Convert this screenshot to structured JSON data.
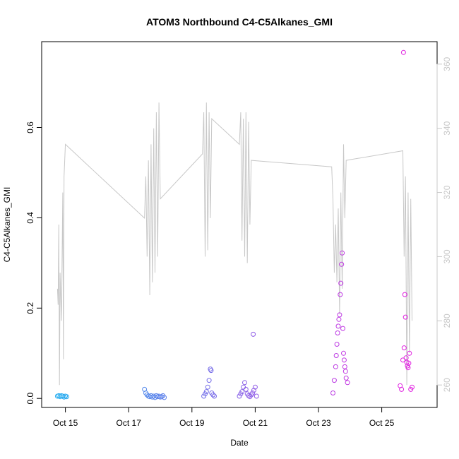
{
  "chart_data": {
    "type": "scatter",
    "title": "ATOM3 Northbound C4-C5Alkanes_GMI",
    "xlabel": "Date",
    "ylabel": "C4-C5Alkanes_GMI",
    "xlim": [
      "2016-10-14T06:00",
      "2016-10-26T18:00"
    ],
    "ylim": [
      -0.02,
      0.79
    ],
    "y2lim": [
      253,
      367
    ],
    "x_ticks": [
      {
        "value": "2016-10-15",
        "label": "Oct 15"
      },
      {
        "value": "2016-10-17",
        "label": "Oct 17"
      },
      {
        "value": "2016-10-19",
        "label": "Oct 19"
      },
      {
        "value": "2016-10-21",
        "label": "Oct 21"
      },
      {
        "value": "2016-10-23",
        "label": "Oct 23"
      },
      {
        "value": "2016-10-25",
        "label": "Oct 25"
      }
    ],
    "y_ticks": [
      {
        "value": 0.0,
        "label": "0.0"
      },
      {
        "value": 0.2,
        "label": "0.2"
      },
      {
        "value": 0.4,
        "label": "0.4"
      },
      {
        "value": 0.6,
        "label": "0.6"
      }
    ],
    "y2_ticks": [
      {
        "value": 260,
        "label": "260"
      },
      {
        "value": 280,
        "label": "280"
      },
      {
        "value": 300,
        "label": "300"
      },
      {
        "value": 320,
        "label": "320"
      },
      {
        "value": 340,
        "label": "340"
      },
      {
        "value": 360,
        "label": "360"
      }
    ],
    "colors": {
      "line": "#c8c8c8",
      "right_axis": "#c8c8c8",
      "point_start": "#1ab2f0",
      "point_end": "#e020e0"
    },
    "series": [
      {
        "type": "scatter",
        "axis": "left",
        "marker": "open-circle",
        "points": [
          [
            "2016-10-14T18:00",
            0.005
          ],
          [
            "2016-10-14T19:00",
            0.006
          ],
          [
            "2016-10-14T20:00",
            0.004
          ],
          [
            "2016-10-14T21:00",
            0.006
          ],
          [
            "2016-10-14T22:00",
            0.005
          ],
          [
            "2016-10-14T23:00",
            0.003
          ],
          [
            "2016-10-15T00:00",
            0.005
          ],
          [
            "2016-10-15T01:00",
            0.004
          ],
          [
            "2016-10-17T12:00",
            0.02
          ],
          [
            "2016-10-17T13:00",
            0.012
          ],
          [
            "2016-10-17T14:00",
            0.008
          ],
          [
            "2016-10-17T15:00",
            0.005
          ],
          [
            "2016-10-17T16:00",
            0.004
          ],
          [
            "2016-10-17T17:00",
            0.006
          ],
          [
            "2016-10-17T18:00",
            0.003
          ],
          [
            "2016-10-17T19:00",
            0.005
          ],
          [
            "2016-10-17T20:00",
            0.002
          ],
          [
            "2016-10-17T21:00",
            0.006
          ],
          [
            "2016-10-17T22:00",
            0.004
          ],
          [
            "2016-10-17T23:00",
            0.005
          ],
          [
            "2016-10-18T00:00",
            0.003
          ],
          [
            "2016-10-18T01:00",
            0.004
          ],
          [
            "2016-10-18T02:00",
            0.006
          ],
          [
            "2016-10-18T03:00",
            0.002
          ],
          [
            "2016-10-19T09:00",
            0.005
          ],
          [
            "2016-10-19T10:00",
            0.01
          ],
          [
            "2016-10-19T11:00",
            0.015
          ],
          [
            "2016-10-19T12:00",
            0.025
          ],
          [
            "2016-10-19T13:00",
            0.04
          ],
          [
            "2016-10-19T14:00",
            0.065
          ],
          [
            "2016-10-19T14:30",
            0.062
          ],
          [
            "2016-10-19T15:00",
            0.012
          ],
          [
            "2016-10-19T16:00",
            0.008
          ],
          [
            "2016-10-19T17:00",
            0.005
          ],
          [
            "2016-10-20T12:00",
            0.005
          ],
          [
            "2016-10-20T13:00",
            0.01
          ],
          [
            "2016-10-20T14:00",
            0.015
          ],
          [
            "2016-10-20T15:00",
            0.025
          ],
          [
            "2016-10-20T16:00",
            0.035
          ],
          [
            "2016-10-20T17:00",
            0.02
          ],
          [
            "2016-10-20T18:00",
            0.01
          ],
          [
            "2016-10-20T19:00",
            0.006
          ],
          [
            "2016-10-20T20:00",
            0.004
          ],
          [
            "2016-10-20T21:00",
            0.008
          ],
          [
            "2016-10-20T22:00",
            0.012
          ],
          [
            "2016-10-20T23:00",
            0.018
          ],
          [
            "2016-10-21T00:00",
            0.025
          ],
          [
            "2016-10-21T01:00",
            0.005
          ],
          [
            "2016-10-20T22:30",
            0.142
          ],
          [
            "2016-10-23T11:00",
            0.012
          ],
          [
            "2016-10-23T12:00",
            0.04
          ],
          [
            "2016-10-23T13:00",
            0.07
          ],
          [
            "2016-10-23T13:30",
            0.095
          ],
          [
            "2016-10-23T14:00",
            0.12
          ],
          [
            "2016-10-23T14:30",
            0.145
          ],
          [
            "2016-10-23T15:00",
            0.16
          ],
          [
            "2016-10-23T15:30",
            0.175
          ],
          [
            "2016-10-23T16:00",
            0.185
          ],
          [
            "2016-10-23T16:30",
            0.23
          ],
          [
            "2016-10-23T17:00",
            0.255
          ],
          [
            "2016-10-23T17:30",
            0.297
          ],
          [
            "2016-10-23T18:00",
            0.322
          ],
          [
            "2016-10-23T18:30",
            0.155
          ],
          [
            "2016-10-23T19:00",
            0.1
          ],
          [
            "2016-10-23T19:30",
            0.085
          ],
          [
            "2016-10-23T20:00",
            0.07
          ],
          [
            "2016-10-23T20:30",
            0.06
          ],
          [
            "2016-10-23T21:00",
            0.045
          ],
          [
            "2016-10-23T22:00",
            0.035
          ],
          [
            "2016-10-25T14:00",
            0.028
          ],
          [
            "2016-10-25T15:00",
            0.02
          ],
          [
            "2016-10-25T16:00",
            0.085
          ],
          [
            "2016-10-25T17:00",
            0.112
          ],
          [
            "2016-10-25T17:30",
            0.23
          ],
          [
            "2016-10-25T18:00",
            0.18
          ],
          [
            "2016-10-25T18:30",
            0.09
          ],
          [
            "2016-10-25T19:00",
            0.08
          ],
          [
            "2016-10-25T19:30",
            0.072
          ],
          [
            "2016-10-25T20:00",
            0.068
          ],
          [
            "2016-10-25T20:30",
            0.078
          ],
          [
            "2016-10-25T21:00",
            0.1
          ],
          [
            "2016-10-25T22:00",
            0.02
          ],
          [
            "2016-10-25T23:00",
            0.025
          ],
          [
            "2016-10-25T16:30",
            0.766
          ]
        ]
      },
      {
        "type": "line",
        "axis": "right",
        "points": [
          [
            "2016-10-14T18:00",
            290
          ],
          [
            "2016-10-14T18:30",
            285
          ],
          [
            "2016-10-14T19:00",
            310
          ],
          [
            "2016-10-14T19:30",
            260
          ],
          [
            "2016-10-14T20:00",
            295
          ],
          [
            "2016-10-14T21:00",
            280
          ],
          [
            "2016-10-14T22:00",
            320
          ],
          [
            "2016-10-14T22:30",
            268
          ],
          [
            "2016-10-14T23:00",
            325
          ],
          [
            "2016-10-15T00:00",
            335
          ],
          [
            "2016-10-17T12:00",
            312
          ],
          [
            "2016-10-17T13:00",
            325
          ],
          [
            "2016-10-17T14:00",
            300
          ],
          [
            "2016-10-17T15:00",
            330
          ],
          [
            "2016-10-17T16:00",
            288
          ],
          [
            "2016-10-17T17:00",
            335
          ],
          [
            "2016-10-17T18:00",
            292
          ],
          [
            "2016-10-17T19:00",
            340
          ],
          [
            "2016-10-17T20:00",
            295
          ],
          [
            "2016-10-17T21:00",
            345
          ],
          [
            "2016-10-17T22:00",
            300
          ],
          [
            "2016-10-17T23:00",
            348
          ],
          [
            "2016-10-18T00:00",
            318
          ],
          [
            "2016-10-19T08:00",
            332
          ],
          [
            "2016-10-19T09:00",
            345
          ],
          [
            "2016-10-19T10:00",
            300
          ],
          [
            "2016-10-19T11:00",
            348
          ],
          [
            "2016-10-19T12:00",
            302
          ],
          [
            "2016-10-19T13:00",
            345
          ],
          [
            "2016-10-19T14:00",
            312
          ],
          [
            "2016-10-19T15:00",
            343
          ],
          [
            "2016-10-20T12:00",
            335
          ],
          [
            "2016-10-20T13:00",
            345
          ],
          [
            "2016-10-20T14:00",
            305
          ],
          [
            "2016-10-20T15:00",
            343
          ],
          [
            "2016-10-20T16:00",
            300
          ],
          [
            "2016-10-20T17:00",
            345
          ],
          [
            "2016-10-20T18:00",
            298
          ],
          [
            "2016-10-20T19:00",
            342
          ],
          [
            "2016-10-20T20:00",
            310
          ],
          [
            "2016-10-20T21:00",
            330
          ],
          [
            "2016-10-23T10:00",
            328
          ],
          [
            "2016-10-23T11:00",
            318
          ],
          [
            "2016-10-23T12:00",
            295
          ],
          [
            "2016-10-23T13:00",
            310
          ],
          [
            "2016-10-23T14:00",
            292
          ],
          [
            "2016-10-23T15:00",
            315
          ],
          [
            "2016-10-23T16:00",
            282
          ],
          [
            "2016-10-23T17:00",
            320
          ],
          [
            "2016-10-23T18:00",
            290
          ],
          [
            "2016-10-23T19:00",
            335
          ],
          [
            "2016-10-23T20:00",
            312
          ],
          [
            "2016-10-23T21:00",
            330
          ],
          [
            "2016-10-25T16:00",
            333
          ],
          [
            "2016-10-25T17:00",
            300
          ],
          [
            "2016-10-25T18:00",
            325
          ],
          [
            "2016-10-25T19:00",
            260
          ],
          [
            "2016-10-25T20:00",
            320
          ],
          [
            "2016-10-25T21:00",
            270
          ],
          [
            "2016-10-25T22:00",
            318
          ],
          [
            "2016-10-25T23:00",
            280
          ]
        ]
      }
    ]
  }
}
